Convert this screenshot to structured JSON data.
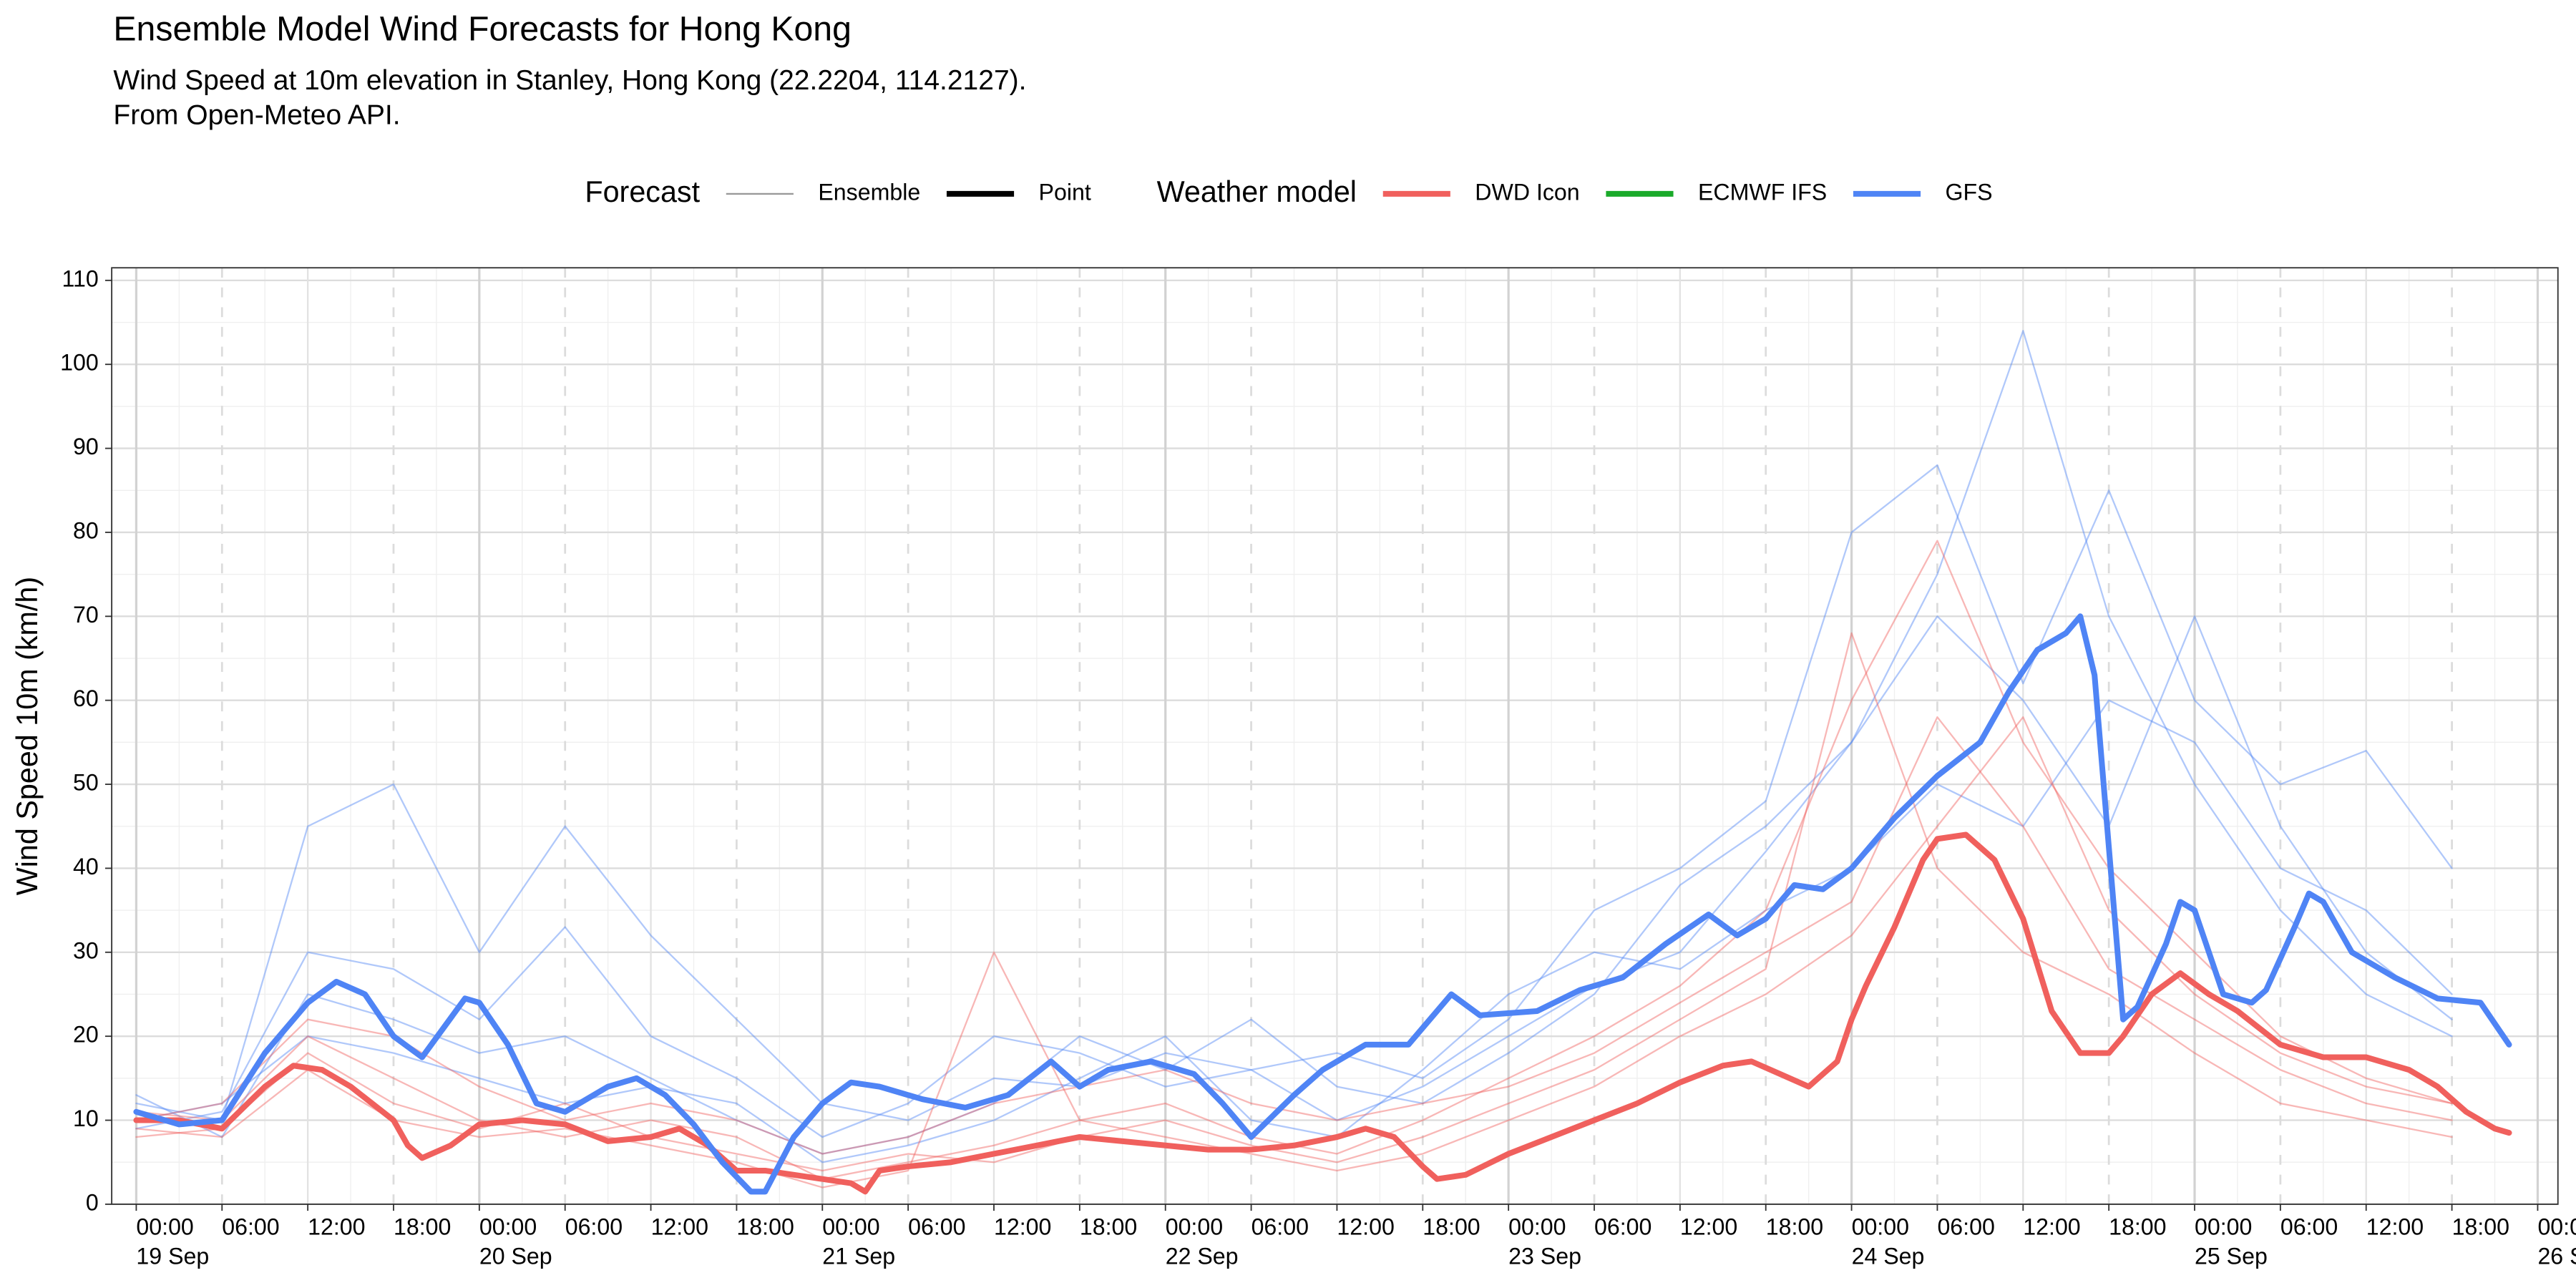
{
  "chart_data": {
    "type": "line",
    "title": "Ensemble Model Wind Forecasts for Hong Kong",
    "subtitle": [
      "Wind Speed at 10m elevation in Stanley, Hong Kong (22.2204, 114.2127).",
      "From Open-Meteo API."
    ],
    "y_label": "Wind Speed 10m (km/h)",
    "legend": [
      {
        "title": "Forecast",
        "items": [
          {
            "label": "Ensemble",
            "color": "#9a9a9a",
            "width": 1
          },
          {
            "label": "Point",
            "color": "#000000",
            "width": 3.5
          }
        ]
      },
      {
        "title": "Weather model",
        "items": [
          {
            "label": "DWD Icon",
            "color": "#f0605d",
            "width": 3.5
          },
          {
            "label": "ECMWF IFS",
            "color": "#1aaa2a",
            "width": 3.5
          },
          {
            "label": "GFS",
            "color": "#4f84f5",
            "width": 3.5
          }
        ]
      }
    ],
    "xlim": [
      "18 Sep 22:17",
      "26 Sep 01:25"
    ],
    "xticks": [
      {
        "value": "19 Sep 00:00",
        "label": "00:00\n19 Sep"
      },
      {
        "value": "19 Sep 06:00",
        "label": "06:00"
      },
      {
        "value": "19 Sep 12:00",
        "label": "12:00"
      },
      {
        "value": "19 Sep 18:00",
        "label": "18:00"
      },
      {
        "value": "20 Sep 00:00",
        "label": "00:00\n20 Sep"
      },
      {
        "value": "20 Sep 06:00",
        "label": "06:00"
      },
      {
        "value": "20 Sep 12:00",
        "label": "12:00"
      },
      {
        "value": "20 Sep 18:00",
        "label": "18:00"
      },
      {
        "value": "21 Sep 00:00",
        "label": "00:00\n21 Sep"
      },
      {
        "value": "21 Sep 06:00",
        "label": "06:00"
      },
      {
        "value": "21 Sep 12:00",
        "label": "12:00"
      },
      {
        "value": "21 Sep 18:00",
        "label": "18:00"
      },
      {
        "value": "22 Sep 00:00",
        "label": "00:00\n22 Sep"
      },
      {
        "value": "22 Sep 06:00",
        "label": "06:00"
      },
      {
        "value": "22 Sep 12:00",
        "label": "12:00"
      },
      {
        "value": "22 Sep 18:00",
        "label": "18:00"
      },
      {
        "value": "23 Sep 00:00",
        "label": "00:00\n23 Sep"
      },
      {
        "value": "23 Sep 06:00",
        "label": "06:00"
      },
      {
        "value": "23 Sep 12:00",
        "label": "12:00"
      },
      {
        "value": "23 Sep 18:00",
        "label": "18:00"
      },
      {
        "value": "24 Sep 00:00",
        "label": "00:00\n24 Sep"
      },
      {
        "value": "24 Sep 06:00",
        "label": "06:00"
      },
      {
        "value": "24 Sep 12:00",
        "label": "12:00"
      },
      {
        "value": "24 Sep 18:00",
        "label": "18:00"
      },
      {
        "value": "25 Sep 00:00",
        "label": "00:00\n25 Sep"
      },
      {
        "value": "25 Sep 06:00",
        "label": "06:00"
      },
      {
        "value": "25 Sep 12:00",
        "label": "12:00"
      },
      {
        "value": "25 Sep 18:00",
        "label": "18:00"
      },
      {
        "value": "26 Sep 00:00",
        "label": "00:00\n26 Sep"
      }
    ],
    "ylim": [
      0,
      111.5
    ],
    "yticks": [
      0,
      10,
      20,
      30,
      40,
      50,
      60,
      70,
      80,
      90,
      100,
      110
    ],
    "grid": true,
    "x": [
      "19 Sep 00:00",
      "19 Sep 06:00",
      "19 Sep 12:00",
      "19 Sep 18:00",
      "20 Sep 00:00",
      "20 Sep 06:00",
      "20 Sep 12:00",
      "20 Sep 18:00",
      "21 Sep 00:00",
      "21 Sep 06:00",
      "21 Sep 12:00",
      "21 Sep 18:00",
      "22 Sep 00:00",
      "22 Sep 06:00",
      "22 Sep 12:00",
      "22 Sep 18:00",
      "23 Sep 00:00",
      "23 Sep 06:00",
      "23 Sep 12:00",
      "23 Sep 18:00",
      "24 Sep 00:00",
      "24 Sep 06:00",
      "24 Sep 12:00",
      "24 Sep 18:00",
      "25 Sep 00:00",
      "25 Sep 06:00",
      "25 Sep 12:00",
      "25 Sep 18:00"
    ],
    "series": [
      {
        "name": "GFS",
        "forecast": "Ensemble",
        "values": [
          12,
          10,
          45,
          50,
          30,
          45,
          32,
          22,
          12,
          10,
          15,
          14,
          18,
          16,
          10,
          14,
          20,
          26,
          30,
          42,
          55,
          75,
          104,
          70,
          50,
          35,
          25,
          20
        ]
      },
      {
        "name": "GFS",
        "forecast": "Ensemble",
        "values": [
          9,
          11,
          30,
          28,
          22,
          33,
          20,
          15,
          8,
          12,
          20,
          18,
          14,
          16,
          18,
          15,
          22,
          35,
          40,
          48,
          80,
          88,
          62,
          85,
          60,
          50,
          54,
          40
        ]
      },
      {
        "name": "GFS",
        "forecast": "Ensemble",
        "values": [
          13,
          8,
          25,
          22,
          18,
          20,
          15,
          10,
          6,
          8,
          12,
          20,
          16,
          22,
          14,
          12,
          18,
          25,
          38,
          45,
          55,
          70,
          60,
          45,
          70,
          45,
          30,
          22
        ]
      },
      {
        "name": "GFS",
        "forecast": "Ensemble",
        "values": [
          10,
          12,
          20,
          18,
          15,
          12,
          14,
          12,
          5,
          7,
          10,
          15,
          20,
          10,
          8,
          16,
          25,
          30,
          28,
          35,
          40,
          50,
          45,
          60,
          55,
          40,
          35,
          25
        ]
      },
      {
        "name": "DWD Icon",
        "forecast": "Ensemble",
        "values": [
          11,
          10,
          20,
          15,
          10,
          8,
          10,
          8,
          3,
          5,
          7,
          10,
          12,
          8,
          6,
          10,
          15,
          20,
          26,
          35,
          60,
          79,
          55,
          40,
          30,
          20,
          15,
          12
        ]
      },
      {
        "name": "DWD Icon",
        "forecast": "Ensemble",
        "values": [
          8,
          9,
          18,
          12,
          9,
          12,
          8,
          6,
          4,
          6,
          5,
          8,
          10,
          7,
          5,
          8,
          12,
          16,
          22,
          28,
          68,
          40,
          30,
          25,
          18,
          12,
          10,
          8
        ]
      },
      {
        "name": "DWD Icon",
        "forecast": "Ensemble",
        "values": [
          10,
          12,
          22,
          20,
          14,
          10,
          12,
          10,
          6,
          8,
          12,
          14,
          16,
          12,
          10,
          12,
          14,
          18,
          24,
          30,
          36,
          58,
          45,
          28,
          22,
          16,
          12,
          10
        ]
      },
      {
        "name": "DWD Icon",
        "forecast": "Ensemble",
        "values": [
          9,
          8,
          16,
          10,
          8,
          9,
          7,
          5,
          2,
          4,
          30,
          10,
          8,
          6,
          4,
          6,
          10,
          14,
          20,
          25,
          32,
          45,
          58,
          35,
          25,
          18,
          14,
          12
        ]
      },
      {
        "name": "DWD Icon",
        "forecast": "Point",
        "x": [
          "19 Sep 00:00",
          "19 Sep 03:00",
          "19 Sep 06:00",
          "19 Sep 09:00",
          "19 Sep 11:00",
          "19 Sep 13:00",
          "19 Sep 15:00",
          "19 Sep 18:00",
          "19 Sep 19:00",
          "19 Sep 20:00",
          "19 Sep 22:00",
          "20 Sep 00:00",
          "20 Sep 03:00",
          "20 Sep 06:00",
          "20 Sep 09:00",
          "20 Sep 12:00",
          "20 Sep 14:00",
          "20 Sep 16:00",
          "20 Sep 18:00",
          "20 Sep 20:00",
          "20 Sep 22:00",
          "21 Sep 00:00",
          "21 Sep 02:00",
          "21 Sep 03:00",
          "21 Sep 04:00",
          "21 Sep 06:00",
          "21 Sep 09:00",
          "21 Sep 12:00",
          "21 Sep 15:00",
          "21 Sep 18:00",
          "21 Sep 21:00",
          "22 Sep 00:00",
          "22 Sep 03:00",
          "22 Sep 06:00",
          "22 Sep 09:00",
          "22 Sep 12:00",
          "22 Sep 14:00",
          "22 Sep 16:00",
          "22 Sep 18:00",
          "22 Sep 19:00",
          "22 Sep 21:00",
          "23 Sep 00:00",
          "23 Sep 03:00",
          "23 Sep 06:00",
          "23 Sep 09:00",
          "23 Sep 12:00",
          "23 Sep 15:00",
          "23 Sep 17:00",
          "23 Sep 19:00",
          "23 Sep 21:00",
          "23 Sep 23:00",
          "24 Sep 00:00",
          "24 Sep 01:00",
          "24 Sep 03:00",
          "24 Sep 05:00",
          "24 Sep 06:00",
          "24 Sep 08:00",
          "24 Sep 10:00",
          "24 Sep 12:00",
          "24 Sep 14:00",
          "24 Sep 16:00",
          "24 Sep 18:00",
          "24 Sep 19:00",
          "24 Sep 21:00",
          "24 Sep 23:00",
          "25 Sep 01:00",
          "25 Sep 03:00",
          "25 Sep 06:00",
          "25 Sep 09:00",
          "25 Sep 12:00",
          "25 Sep 15:00",
          "25 Sep 17:00",
          "25 Sep 19:00",
          "25 Sep 21:00",
          "25 Sep 22:00"
        ],
        "values": [
          10,
          10,
          9,
          14,
          16.5,
          16,
          14,
          10,
          7,
          5.5,
          7,
          9.5,
          10,
          9.5,
          7.5,
          8,
          9,
          7,
          4,
          4,
          3.5,
          3,
          2.5,
          1.5,
          4,
          4.5,
          5,
          6,
          7,
          8,
          7.5,
          7,
          6.5,
          6.5,
          7,
          8,
          9,
          8,
          4.5,
          3,
          3.5,
          6,
          8,
          10,
          12,
          14.5,
          16.5,
          17,
          15.5,
          14,
          17,
          22,
          26,
          33,
          41,
          43.5,
          44,
          41,
          34,
          23,
          18,
          18,
          20,
          25,
          27.5,
          25,
          23,
          19,
          17.5,
          17.5,
          16,
          14,
          11,
          9,
          8.5
        ]
      },
      {
        "name": "GFS",
        "forecast": "Point",
        "x": [
          "19 Sep 00:00",
          "19 Sep 03:00",
          "19 Sep 06:00",
          "19 Sep 09:00",
          "19 Sep 12:00",
          "19 Sep 14:00",
          "19 Sep 16:00",
          "19 Sep 18:00",
          "19 Sep 20:00",
          "19 Sep 23:00",
          "20 Sep 00:00",
          "20 Sep 02:00",
          "20 Sep 04:00",
          "20 Sep 06:00",
          "20 Sep 09:00",
          "20 Sep 11:00",
          "20 Sep 13:00",
          "20 Sep 15:00",
          "20 Sep 17:00",
          "20 Sep 19:00",
          "20 Sep 20:00",
          "20 Sep 22:00",
          "21 Sep 00:00",
          "21 Sep 02:00",
          "21 Sep 04:00",
          "21 Sep 07:00",
          "21 Sep 10:00",
          "21 Sep 13:00",
          "21 Sep 16:00",
          "21 Sep 18:00",
          "21 Sep 20:00",
          "21 Sep 23:00",
          "22 Sep 02:00",
          "22 Sep 04:00",
          "22 Sep 06:00",
          "22 Sep 09:00",
          "22 Sep 11:00",
          "22 Sep 14:00",
          "22 Sep 17:00",
          "22 Sep 20:00",
          "22 Sep 22:00",
          "23 Sep 02:00",
          "23 Sep 05:00",
          "23 Sep 08:00",
          "23 Sep 11:00",
          "23 Sep 14:00",
          "23 Sep 16:00",
          "23 Sep 18:00",
          "23 Sep 20:00",
          "23 Sep 22:00",
          "24 Sep 00:00",
          "24 Sep 03:00",
          "24 Sep 06:00",
          "24 Sep 09:00",
          "24 Sep 11:00",
          "24 Sep 13:00",
          "24 Sep 15:00",
          "24 Sep 16:00",
          "24 Sep 17:00",
          "24 Sep 19:00",
          "24 Sep 20:00",
          "24 Sep 22:00",
          "24 Sep 23:00",
          "25 Sep 00:00",
          "25 Sep 02:00",
          "25 Sep 04:00",
          "25 Sep 05:00",
          "25 Sep 07:00",
          "25 Sep 08:00",
          "25 Sep 09:00",
          "25 Sep 11:00",
          "25 Sep 14:00",
          "25 Sep 17:00",
          "25 Sep 20:00",
          "25 Sep 22:00"
        ],
        "values": [
          11,
          9.5,
          10,
          18,
          24,
          26.5,
          25,
          20,
          17.5,
          24.5,
          24,
          19,
          12,
          11,
          14,
          15,
          13,
          9.5,
          5,
          1.5,
          1.5,
          8,
          12,
          14.5,
          14,
          12.5,
          11.5,
          13,
          17,
          14,
          16,
          17,
          15.5,
          12,
          8,
          13,
          16,
          19,
          19,
          25,
          22.5,
          23,
          25.5,
          27,
          31,
          34.5,
          32,
          34,
          38,
          37.5,
          40,
          46,
          51,
          55,
          61,
          66,
          68,
          70,
          63,
          22,
          23.5,
          31,
          36,
          35,
          25,
          24,
          25.5,
          33,
          37,
          36,
          30,
          27,
          24.5,
          24,
          19
        ]
      }
    ]
  }
}
